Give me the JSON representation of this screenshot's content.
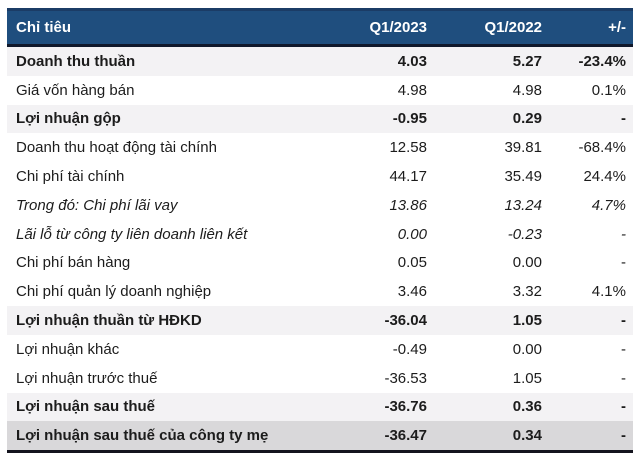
{
  "header": {
    "col_label": "Chỉ tiêu",
    "col_q1_2023": "Q1/2023",
    "col_q1_2022": "Q1/2022",
    "col_change": "+/-"
  },
  "colors": {
    "header_bg": "#1F4E7E",
    "header_text": "#FFFFFF",
    "section_row_bg": "#F3F2F4",
    "total_row_bg": "#D9D8DA",
    "dark_rule": "#14141E",
    "body_text": "#1C1C1C"
  },
  "table": {
    "rows": [
      {
        "name": "Doanh thu thuần",
        "q1_2023": "4.03",
        "q1_2022": "5.27",
        "change": "-23.4%",
        "style": "section"
      },
      {
        "name": "Giá vốn hàng bán",
        "q1_2023": "4.98",
        "q1_2022": "4.98",
        "change": "0.1%",
        "style": "normal"
      },
      {
        "name": "Lợi nhuận gộp",
        "q1_2023": "-0.95",
        "q1_2022": "0.29",
        "change": "-",
        "style": "section"
      },
      {
        "name": "Doanh thu hoạt động tài chính",
        "q1_2023": "12.58",
        "q1_2022": "39.81",
        "change": "-68.4%",
        "style": "normal"
      },
      {
        "name": "Chi phí tài chính",
        "q1_2023": "44.17",
        "q1_2022": "35.49",
        "change": "24.4%",
        "style": "normal"
      },
      {
        "name": "Trong đó: Chi phí lãi vay",
        "q1_2023": "13.86",
        "q1_2022": "13.24",
        "change": "4.7%",
        "style": "italic"
      },
      {
        "name": "Lãi lỗ từ công ty liên doanh liên kết",
        "q1_2023": "0.00",
        "q1_2022": "-0.23",
        "change": "-",
        "style": "italic"
      },
      {
        "name": "Chi phí bán hàng",
        "q1_2023": "0.05",
        "q1_2022": "0.00",
        "change": "-",
        "style": "normal"
      },
      {
        "name": "Chi phí quản lý doanh nghiệp",
        "q1_2023": "3.46",
        "q1_2022": "3.32",
        "change": "4.1%",
        "style": "normal"
      },
      {
        "name": "Lợi nhuận thuần từ HĐKD",
        "q1_2023": "-36.04",
        "q1_2022": "1.05",
        "change": "-",
        "style": "section"
      },
      {
        "name": "Lợi nhuận khác",
        "q1_2023": "-0.49",
        "q1_2022": "0.00",
        "change": "-",
        "style": "normal"
      },
      {
        "name": "Lợi nhuận trước thuế",
        "q1_2023": "-36.53",
        "q1_2022": "1.05",
        "change": "-",
        "style": "normal"
      },
      {
        "name": "Lợi nhuận sau thuế",
        "q1_2023": "-36.76",
        "q1_2022": "0.36",
        "change": "-",
        "style": "section"
      },
      {
        "name": "Lợi nhuận sau thuế của công ty mẹ",
        "q1_2023": "-36.47",
        "q1_2022": "0.34",
        "change": "-",
        "style": "total"
      }
    ]
  }
}
